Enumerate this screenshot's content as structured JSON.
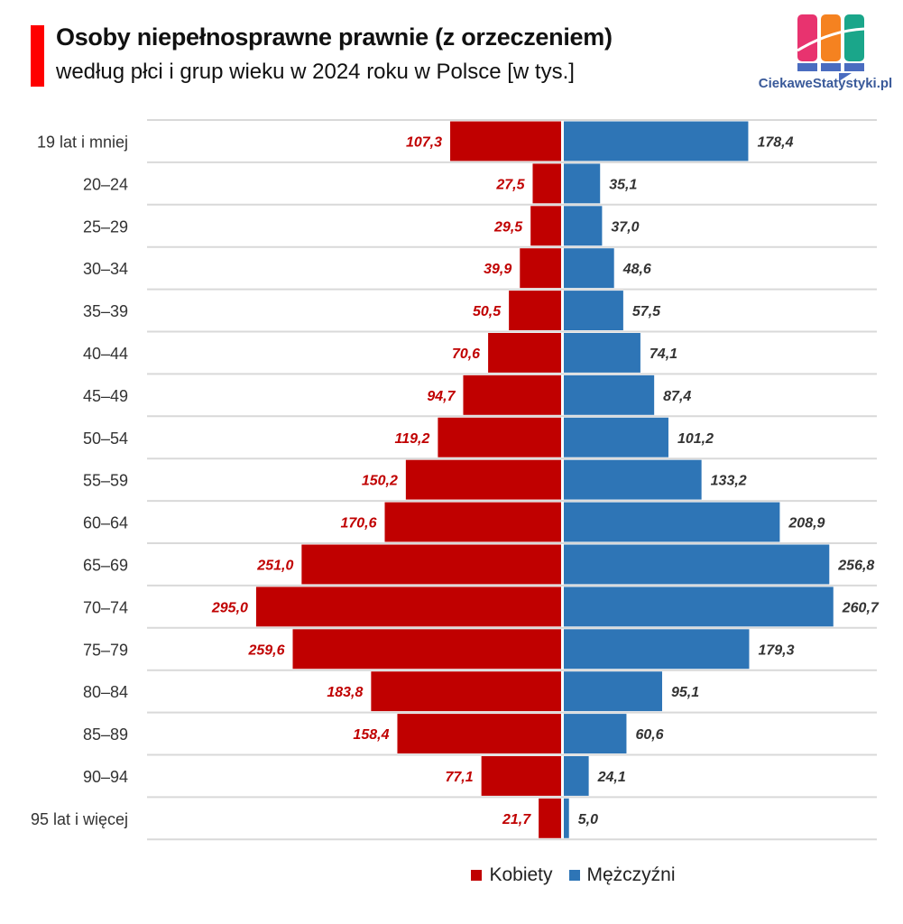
{
  "header": {
    "title": "Osoby niepełnosprawne prawnie (z orzeczeniem)",
    "subtitle": "według płci i grup wieku w 2024 roku w Polsce [w tys.]",
    "logo_text": "CiekaweStatystyki.pl"
  },
  "colors": {
    "accent": "#ff0000",
    "women": "#c00000",
    "men": "#2e75b6",
    "men_label": "#333333",
    "grid": "#d9d9d9"
  },
  "chart_data": {
    "type": "bar",
    "orientation": "horizontal-population-pyramid",
    "title": "Osoby niepełnosprawne prawnie (z orzeczeniem)",
    "subtitle": "według płci i grup wieku w 2024 roku w Polsce [w tys.]",
    "categories": [
      "19 lat i mniej",
      "20–24",
      "25–29",
      "30–34",
      "35–39",
      "40–44",
      "45–49",
      "50–54",
      "55–59",
      "60–64",
      "65–69",
      "70–74",
      "75–79",
      "80–84",
      "85–89",
      "90–94",
      "95 lat i więcej"
    ],
    "series": [
      {
        "name": "Kobiety",
        "side": "left",
        "color": "#c00000",
        "values": [
          107.3,
          27.5,
          29.5,
          39.9,
          50.5,
          70.6,
          94.7,
          119.2,
          150.2,
          170.6,
          251.0,
          295.0,
          259.6,
          183.8,
          158.4,
          77.1,
          21.7
        ],
        "labels": [
          "107,3",
          "27,5",
          "29,5",
          "39,9",
          "50,5",
          "70,6",
          "94,7",
          "119,2",
          "150,2",
          "170,6",
          "251,0",
          "295,0",
          "259,6",
          "183,8",
          "158,4",
          "77,1",
          "21,7"
        ]
      },
      {
        "name": "Mężczyźni",
        "side": "right",
        "color": "#2e75b6",
        "values": [
          178.4,
          35.1,
          37.0,
          48.6,
          57.5,
          74.1,
          87.4,
          101.2,
          133.2,
          208.9,
          256.8,
          260.7,
          179.3,
          95.1,
          60.6,
          24.1,
          5.0
        ],
        "labels": [
          "178,4",
          "35,1",
          "37,0",
          "48,6",
          "57,5",
          "74,1",
          "87,4",
          "101,2",
          "133,2",
          "208,9",
          "256,8",
          "260,7",
          "179,3",
          "95,1",
          "60,6",
          "24,1",
          "5,0"
        ]
      }
    ],
    "grid": "horizontal row separators",
    "legend_position": "bottom"
  },
  "legend": {
    "women": "Kobiety",
    "men": "Mężczyźni"
  }
}
